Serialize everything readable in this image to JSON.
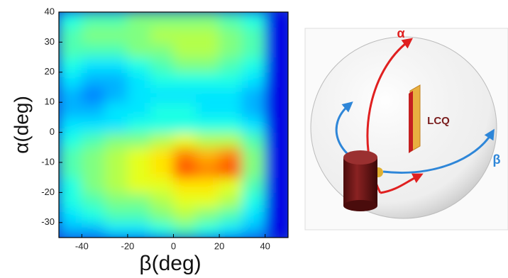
{
  "chart_data": {
    "type": "heatmap",
    "xlabel": "β(deg)",
    "ylabel": "α(deg)",
    "xlim": [
      -50,
      50
    ],
    "ylim": [
      -35,
      40
    ],
    "xticks": [
      -40,
      -20,
      0,
      20,
      40
    ],
    "yticks": [
      -30,
      -20,
      -10,
      0,
      10,
      20,
      30,
      40
    ],
    "xbins": [
      -50,
      -40,
      -30,
      -20,
      -10,
      0,
      10,
      20,
      30,
      40,
      50
    ],
    "ybins": [
      -35,
      -30,
      -25,
      -20,
      -15,
      -10,
      -5,
      0,
      5,
      10,
      15,
      20,
      25,
      30,
      35,
      40
    ],
    "colormap": "jet",
    "z": [
      [
        0.3,
        0.3,
        0.35,
        0.35,
        0.4,
        0.45,
        0.4,
        0.35,
        0.3,
        0.1
      ],
      [
        0.35,
        0.4,
        0.45,
        0.45,
        0.5,
        0.55,
        0.5,
        0.45,
        0.35,
        0.1
      ],
      [
        0.4,
        0.45,
        0.5,
        0.5,
        0.55,
        0.6,
        0.6,
        0.55,
        0.4,
        0.1
      ],
      [
        0.4,
        0.5,
        0.55,
        0.6,
        0.6,
        0.65,
        0.65,
        0.6,
        0.45,
        0.1
      ],
      [
        0.45,
        0.5,
        0.55,
        0.6,
        0.65,
        0.8,
        0.75,
        0.8,
        0.5,
        0.1
      ],
      [
        0.45,
        0.5,
        0.55,
        0.6,
        0.65,
        0.75,
        0.7,
        0.75,
        0.5,
        0.1
      ],
      [
        0.4,
        0.45,
        0.5,
        0.5,
        0.55,
        0.6,
        0.55,
        0.55,
        0.45,
        0.1
      ],
      [
        0.35,
        0.35,
        0.35,
        0.4,
        0.4,
        0.4,
        0.4,
        0.4,
        0.35,
        0.1
      ],
      [
        0.3,
        0.3,
        0.35,
        0.35,
        0.4,
        0.4,
        0.35,
        0.35,
        0.3,
        0.1
      ],
      [
        0.3,
        0.25,
        0.3,
        0.35,
        0.35,
        0.35,
        0.35,
        0.35,
        0.3,
        0.1
      ],
      [
        0.35,
        0.3,
        0.3,
        0.35,
        0.4,
        0.4,
        0.4,
        0.4,
        0.35,
        0.1
      ],
      [
        0.4,
        0.35,
        0.35,
        0.4,
        0.45,
        0.5,
        0.5,
        0.45,
        0.4,
        0.1
      ],
      [
        0.45,
        0.45,
        0.45,
        0.5,
        0.5,
        0.55,
        0.55,
        0.5,
        0.45,
        0.1
      ],
      [
        0.45,
        0.5,
        0.5,
        0.5,
        0.55,
        0.55,
        0.55,
        0.5,
        0.45,
        0.1
      ],
      [
        0.4,
        0.45,
        0.45,
        0.5,
        0.5,
        0.5,
        0.5,
        0.45,
        0.4,
        0.1
      ]
    ]
  },
  "diagram": {
    "alpha_label": "α",
    "beta_label": "β",
    "sample_label": "LCQ"
  }
}
